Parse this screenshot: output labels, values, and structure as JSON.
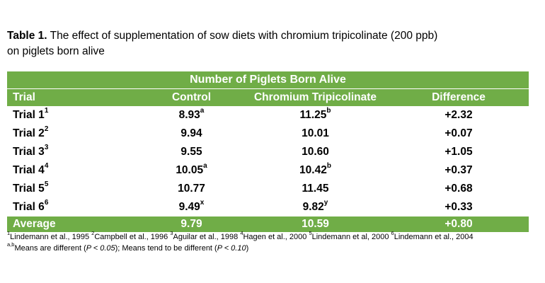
{
  "caption": {
    "label": "Table 1.",
    "line1": " The effect of supplementation of sow diets with chromium tripicolinate (200 ppb)",
    "line2": "on piglets born alive"
  },
  "table": {
    "title": "Number of Piglets Born Alive",
    "headers": {
      "trial": "Trial",
      "control": "Control",
      "chromium": "Chromium Tripicolinate",
      "difference": "Difference"
    },
    "rows": [
      {
        "trial": "Trial 1",
        "trial_sup": "1",
        "control": "8.93",
        "control_sup": "a",
        "chromium": "11.25",
        "chromium_sup": "b",
        "difference": "+2.32"
      },
      {
        "trial": "Trial 2",
        "trial_sup": "2",
        "control": "9.94",
        "control_sup": "",
        "chromium": "10.01",
        "chromium_sup": "",
        "difference": "+0.07"
      },
      {
        "trial": "Trial 3",
        "trial_sup": "3",
        "control": "9.55",
        "control_sup": "",
        "chromium": "10.60",
        "chromium_sup": "",
        "difference": "+1.05"
      },
      {
        "trial": "Trial 4",
        "trial_sup": "4",
        "control": "10.05",
        "control_sup": "a",
        "chromium": "10.42",
        "chromium_sup": "b",
        "difference": "+0.37"
      },
      {
        "trial": "Trial 5",
        "trial_sup": "5",
        "control": "10.77",
        "control_sup": "",
        "chromium": "11.45",
        "chromium_sup": "",
        "difference": "+0.68"
      },
      {
        "trial": "Trial 6",
        "trial_sup": "6",
        "control": "9.49",
        "control_sup": "x",
        "chromium": "9.82",
        "chromium_sup": "y",
        "difference": "+0.33"
      }
    ],
    "average": {
      "label": "Average",
      "control": "9.79",
      "chromium": "10.59",
      "difference": "+0.80"
    }
  },
  "footnotes": {
    "refs": [
      {
        "sup": "1",
        "text": "Lindemann et al., 1995 "
      },
      {
        "sup": "2",
        "text": "Campbell et al., 1996 "
      },
      {
        "sup": "3",
        "text": "Aguilar et al., 1998 "
      },
      {
        "sup": "4",
        "text": "Hagen et al., 2000 "
      },
      {
        "sup": "5",
        "text": "Lindemann et al, 2000 "
      },
      {
        "sup": "6",
        "text": "Lindemann et al., 2004"
      }
    ],
    "note_sup": "a,b",
    "note_text_1": "Means are different (",
    "note_p1": "P < 0.05",
    "note_text_2": "); Means tend to be different (",
    "note_p2": "P < 0.10",
    "note_text_3": ")"
  },
  "colors": {
    "band_green": "#70ad47",
    "band_text": "#ffffff"
  }
}
